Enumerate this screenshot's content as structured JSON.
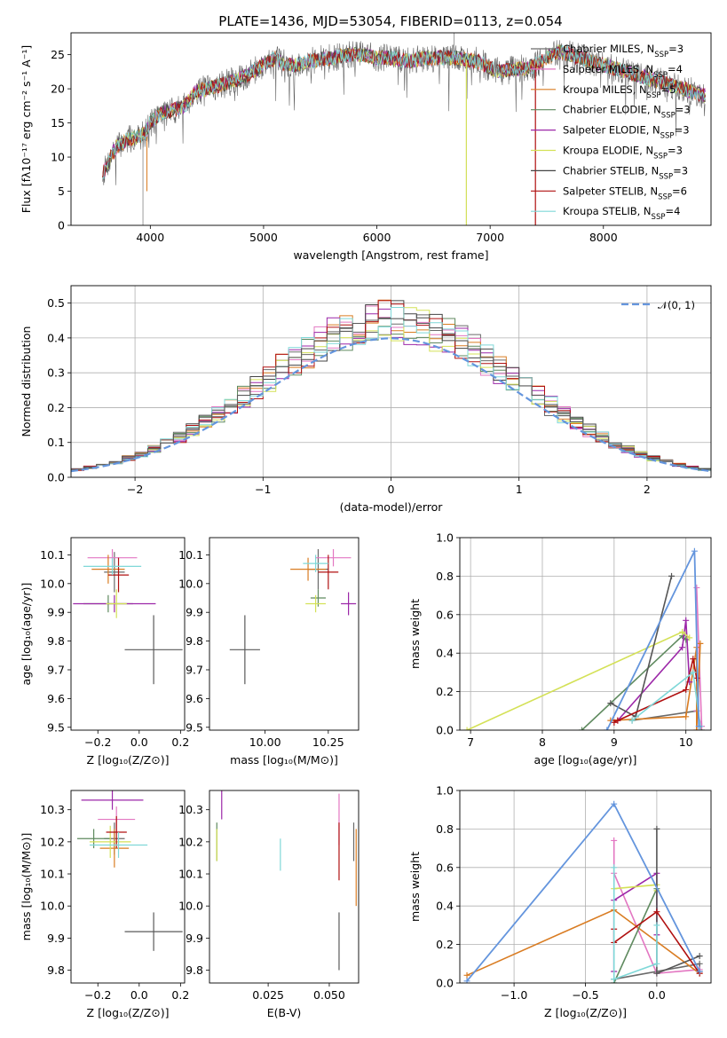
{
  "figure_title": "PLATE=1436, MJD=53054, FIBERID=0113, z=0.054",
  "model_colors": [
    "#6a6a6a",
    "#e377c2",
    "#d97c22",
    "#5f8a5f",
    "#9c27a8",
    "#d4e157",
    "#444444",
    "#b01010",
    "#7fd8d8"
  ],
  "median_color": "#5a5a5a",
  "normal_color": "#6495dd",
  "chart_data": [
    {
      "id": "spectrum",
      "type": "line",
      "title": "PLATE=1436, MJD=53054, FIBERID=0113, z=0.054",
      "xlabel": "wavelength [Angstrom, rest frame]",
      "ylabel": "Flux [fλ10⁻¹⁷ erg cm⁻² s⁻¹ A⁻¹]",
      "xlim": [
        3300,
        8950
      ],
      "ylim": [
        0,
        28.2
      ],
      "xticks": [
        "4000",
        "5000",
        "6000",
        "7000",
        "8000"
      ],
      "yticks": [
        "0",
        "5",
        "10",
        "15",
        "20",
        "25"
      ],
      "legend_position": "upper-right",
      "legend": [
        {
          "text": "Chabrier MILES, N",
          "sub": "SSP",
          "tail": "=3"
        },
        {
          "text": "Salpeter MILES, N",
          "sub": "SSP",
          "tail": "=4"
        },
        {
          "text": "Kroupa MILES, N",
          "sub": "SSP",
          "tail": "=5"
        },
        {
          "text": "Chabrier ELODIE, N",
          "sub": "SSP",
          "tail": "=3"
        },
        {
          "text": "Salpeter ELODIE, N",
          "sub": "SSP",
          "tail": "=3"
        },
        {
          "text": "Kroupa ELODIE, N",
          "sub": "SSP",
          "tail": "=3"
        },
        {
          "text": "Chabrier STELIB, N",
          "sub": "SSP",
          "tail": "=3"
        },
        {
          "text": "Salpeter STELIB, N",
          "sub": "SSP",
          "tail": "=6"
        },
        {
          "text": "Kroupa STELIB, N",
          "sub": "SSP",
          "tail": "=4"
        }
      ],
      "continuum": {
        "x": [
          3580,
          3650,
          3700,
          3800,
          3900,
          3950,
          4000,
          4100,
          4200,
          4300,
          4400,
          4500,
          4600,
          4700,
          4800,
          4900,
          5000,
          5100,
          5200,
          5300,
          5400,
          5500,
          5600,
          5700,
          5800,
          5900,
          6000,
          6100,
          6200,
          6300,
          6400,
          6500,
          6600,
          6700,
          6800,
          6900,
          7000,
          7100,
          7200,
          7300,
          7400,
          7500,
          7600,
          7700,
          7800,
          7900,
          8000,
          8100,
          8200,
          8300,
          8400,
          8500,
          8600,
          8700,
          8800,
          8900
        ],
        "y": [
          7.5,
          10.0,
          11.5,
          12.5,
          13.0,
          13.5,
          15.0,
          16.5,
          16.8,
          17.5,
          19.5,
          20.0,
          20.5,
          21.0,
          21.5,
          22.5,
          23.5,
          24.5,
          23.5,
          23.5,
          24.0,
          24.3,
          24.5,
          24.8,
          25.0,
          25.0,
          24.5,
          24.6,
          24.3,
          24.0,
          24.5,
          24.5,
          24.6,
          24.5,
          24.3,
          24.0,
          23.0,
          22.5,
          22.8,
          23.0,
          23.5,
          24.5,
          25.5,
          25.0,
          24.5,
          24.0,
          23.5,
          23.0,
          22.5,
          22.0,
          21.5,
          21.0,
          20.5,
          20.0,
          19.5,
          19.0
        ]
      },
      "spikes": [
        {
          "x": 3935,
          "y": 0.0
        },
        {
          "x": 6790,
          "y": 0.0
        },
        {
          "x": 7400,
          "y": 0.0
        },
        {
          "x": 6680,
          "y": 28.2
        }
      ],
      "notch": {
        "x": 3970,
        "y": 5.0
      }
    },
    {
      "id": "residual-histogram",
      "type": "step",
      "xlabel": "(data-model)/error",
      "ylabel": "Normed distribution",
      "xlim": [
        -2.5,
        2.5
      ],
      "ylim": [
        0,
        0.55
      ],
      "xticks": [
        "−2",
        "−1",
        "0",
        "1",
        "2"
      ],
      "yticks": [
        "0.0",
        "0.1",
        "0.2",
        "0.3",
        "0.4",
        "0.5"
      ],
      "bin_width": 0.1,
      "legend_position": "upper-right",
      "legend": [
        {
          "text": "𝒩(0, 1)"
        }
      ],
      "median": [
        0.02,
        0.025,
        0.03,
        0.04,
        0.045,
        0.05,
        0.06,
        0.07,
        0.085,
        0.095,
        0.11,
        0.12,
        0.135,
        0.15,
        0.17,
        0.19,
        0.21,
        0.24,
        0.26,
        0.28,
        0.3,
        0.32,
        0.34,
        0.35,
        0.37,
        0.4,
        0.42,
        0.45,
        0.47,
        0.46,
        0.44,
        0.43,
        0.42,
        0.41,
        0.43,
        0.45,
        0.44,
        0.43,
        0.41,
        0.39,
        0.37,
        0.34,
        0.32,
        0.3,
        0.28,
        0.26,
        0.23,
        0.21,
        0.19,
        0.17,
        0.15,
        0.13,
        0.12,
        0.1,
        0.09,
        0.075,
        0.065,
        0.055,
        0.045,
        0.035,
        0.03,
        0.025,
        0.02,
        0.02,
        0.015,
        0.015,
        0.01,
        0.01,
        0.01,
        0.005
      ],
      "normal_pdf": [
        0.018,
        0.024,
        0.032,
        0.042,
        0.054,
        0.068,
        0.085,
        0.104,
        0.125,
        0.148,
        0.175,
        0.203,
        0.233,
        0.264,
        0.295,
        0.325,
        0.352,
        0.375,
        0.391,
        0.399,
        0.397,
        0.385,
        0.364,
        0.336,
        0.302,
        0.266,
        0.229,
        0.193,
        0.159,
        0.128,
        0.101,
        0.078,
        0.059,
        0.044,
        0.032,
        0.022
      ]
    },
    {
      "id": "age-vs-metallicity",
      "type": "errorbar",
      "xlabel": "Z [log₁₀(Z/Z⊙)]",
      "ylabel": "age  [log₁₀(age/yr)]",
      "xlim": [
        -0.33,
        0.22
      ],
      "ylim": [
        9.49,
        10.16
      ],
      "xticks": [
        "−0.2",
        "0.0",
        "0.2"
      ],
      "yticks": [
        "9.5",
        "9.6",
        "9.7",
        "9.8",
        "9.9",
        "10.0",
        "10.1"
      ],
      "points": [
        {
          "x": -0.12,
          "y": 10.04,
          "xerr": 0.05,
          "yerr": 0.07
        },
        {
          "x": -0.13,
          "y": 10.09,
          "xerr": 0.12,
          "yerr": 0.03
        },
        {
          "x": -0.15,
          "y": 10.05,
          "xerr": 0.08,
          "yerr": 0.05
        },
        {
          "x": -0.15,
          "y": 9.93,
          "xerr": 0.12,
          "yerr": 0.03
        },
        {
          "x": -0.12,
          "y": 9.93,
          "xerr": 0.2,
          "yerr": 0.03
        },
        {
          "x": -0.11,
          "y": 9.93,
          "xerr": 0.05,
          "yerr": 0.05
        },
        {
          "x": 0.07,
          "y": 9.77,
          "xerr": 0.14,
          "yerr": 0.12
        },
        {
          "x": -0.1,
          "y": 10.03,
          "xerr": 0.05,
          "yerr": 0.06
        },
        {
          "x": -0.13,
          "y": 10.06,
          "xerr": 0.14,
          "yerr": 0.03
        }
      ]
    },
    {
      "id": "age-vs-mass",
      "type": "errorbar",
      "xlabel": "mass [log₁₀(M/M⊙)]",
      "ylabel": "",
      "xlim": [
        9.78,
        10.37
      ],
      "ylim": [
        9.49,
        10.16
      ],
      "xticks": [
        "10.00",
        "10.25"
      ],
      "yticks": [
        "9.5",
        "9.6",
        "9.7",
        "9.8",
        "9.9",
        "10.0",
        "10.1"
      ],
      "points": [
        {
          "x": 10.21,
          "y": 10.05,
          "xerr": 0.04,
          "yerr": 0.07
        },
        {
          "x": 10.27,
          "y": 10.09,
          "xerr": 0.07,
          "yerr": 0.03
        },
        {
          "x": 10.17,
          "y": 10.05,
          "xerr": 0.07,
          "yerr": 0.04
        },
        {
          "x": 10.21,
          "y": 9.95,
          "xerr": 0.03,
          "yerr": 0.03
        },
        {
          "x": 10.33,
          "y": 9.93,
          "xerr": 0.03,
          "yerr": 0.04
        },
        {
          "x": 10.2,
          "y": 9.93,
          "xerr": 0.04,
          "yerr": 0.03
        },
        {
          "x": 9.92,
          "y": 9.77,
          "xerr": 0.06,
          "yerr": 0.12
        },
        {
          "x": 10.25,
          "y": 10.04,
          "xerr": 0.04,
          "yerr": 0.06
        },
        {
          "x": 10.2,
          "y": 10.07,
          "xerr": 0.05,
          "yerr": 0.03
        }
      ]
    },
    {
      "id": "mass-weight-vs-age",
      "type": "line",
      "xlabel": "age  [log₁₀(age/yr)]",
      "ylabel": "mass weight",
      "xlim": [
        6.85,
        10.35
      ],
      "ylim": [
        0.0,
        1.0
      ],
      "xticks": [
        "7",
        "8",
        "9",
        "10"
      ],
      "yticks": [
        "0.0",
        "0.2",
        "0.4",
        "0.6",
        "0.8",
        "1.0"
      ],
      "grid": true,
      "series": [
        {
          "x": [
            9.25,
            10.15,
            10.22
          ],
          "y": [
            0.05,
            0.1,
            0.0
          ]
        },
        {
          "x": [
            10.15,
            10.22,
            10.15
          ],
          "y": [
            0.74,
            0.02,
            0.1
          ]
        },
        {
          "x": [
            8.95,
            10.0,
            10.15,
            10.15,
            10.2
          ],
          "y": [
            0.05,
            0.07,
            0.43,
            0.0,
            0.45
          ]
        },
        {
          "x": [
            8.55,
            9.95,
            10.0
          ],
          "y": [
            0.0,
            0.49,
            0.47
          ]
        },
        {
          "x": [
            9.05,
            9.95,
            10.0,
            10.05
          ],
          "y": [
            0.05,
            0.43,
            0.57,
            0.25
          ]
        },
        {
          "x": [
            6.95,
            9.95,
            10.05
          ],
          "y": [
            0.0,
            0.51,
            0.48
          ]
        },
        {
          "x": [
            8.95,
            9.3,
            9.8
          ],
          "y": [
            0.14,
            0.07,
            0.8
          ]
        },
        {
          "x": [
            9.0,
            9.05,
            10.0,
            10.1,
            10.15
          ],
          "y": [
            0.04,
            0.05,
            0.21,
            0.37,
            0.27
          ]
        },
        {
          "x": [
            9.25,
            10.1,
            10.2
          ],
          "y": [
            0.05,
            0.3,
            0.02
          ]
        }
      ],
      "overlay": {
        "x": [
          8.9,
          10.12,
          10.18
        ],
        "y": [
          0.0,
          0.93,
          0.02
        ]
      }
    },
    {
      "id": "mass-vs-metallicity",
      "type": "errorbar",
      "xlabel": "Z [log₁₀(Z/Z⊙)]",
      "ylabel": "mass [log₁₀(M/M⊙)]",
      "xlim": [
        -0.33,
        0.22
      ],
      "ylim": [
        9.76,
        10.36
      ],
      "xticks": [
        "−0.2",
        "0.0",
        "0.2"
      ],
      "yticks": [
        "9.8",
        "9.9",
        "10.0",
        "10.1",
        "10.2",
        "10.3"
      ],
      "points": [
        {
          "x": -0.12,
          "y": 10.21,
          "xerr": 0.05,
          "yerr": 0.05
        },
        {
          "x": -0.11,
          "y": 10.27,
          "xerr": 0.09,
          "yerr": 0.04
        },
        {
          "x": -0.12,
          "y": 10.18,
          "xerr": 0.07,
          "yerr": 0.06
        },
        {
          "x": -0.22,
          "y": 10.21,
          "xerr": 0.08,
          "yerr": 0.03
        },
        {
          "x": -0.13,
          "y": 10.33,
          "xerr": 0.15,
          "yerr": 0.03
        },
        {
          "x": -0.14,
          "y": 10.2,
          "xerr": 0.1,
          "yerr": 0.05
        },
        {
          "x": 0.07,
          "y": 9.92,
          "xerr": 0.14,
          "yerr": 0.06
        },
        {
          "x": -0.11,
          "y": 10.23,
          "xerr": 0.05,
          "yerr": 0.05
        },
        {
          "x": -0.1,
          "y": 10.19,
          "xerr": 0.14,
          "yerr": 0.04
        }
      ]
    },
    {
      "id": "mass-vs-extinction",
      "type": "errorbar",
      "xlabel": "E(B-V)",
      "ylabel": "",
      "xlim": [
        0.001,
        0.062
      ],
      "ylim": [
        9.76,
        10.36
      ],
      "xticks": [
        "0.025",
        "0.050"
      ],
      "yticks": [
        "9.8",
        "9.9",
        "10.0",
        "10.1",
        "10.2",
        "10.3"
      ],
      "points": [
        {
          "x": 0.06,
          "y": 10.2,
          "xerr": 0.0,
          "yerr": 0.06
        },
        {
          "x": 0.054,
          "y": 10.27,
          "xerr": 0.0,
          "yerr": 0.08
        },
        {
          "x": 0.061,
          "y": 10.12,
          "xerr": 0.0,
          "yerr": 0.12
        },
        {
          "x": 0.004,
          "y": 10.2,
          "xerr": 0.0,
          "yerr": 0.06
        },
        {
          "x": 0.006,
          "y": 10.32,
          "xerr": 0.0,
          "yerr": 0.05
        },
        {
          "x": 0.004,
          "y": 10.19,
          "xerr": 0.0,
          "yerr": 0.05
        },
        {
          "x": 0.054,
          "y": 9.89,
          "xerr": 0.0,
          "yerr": 0.09
        },
        {
          "x": 0.054,
          "y": 10.17,
          "xerr": 0.0,
          "yerr": 0.09
        },
        {
          "x": 0.03,
          "y": 10.16,
          "xerr": 0.0,
          "yerr": 0.05
        }
      ]
    },
    {
      "id": "mass-weight-vs-metallicity",
      "type": "line",
      "xlabel": "Z [log₁₀(Z/Z⊙)]",
      "ylabel": "mass weight",
      "xlim": [
        -1.38,
        0.38
      ],
      "ylim": [
        0.0,
        1.0
      ],
      "xticks": [
        "−1.0",
        "−0.5",
        "0.0"
      ],
      "yticks": [
        "0.0",
        "0.2",
        "0.4",
        "0.6",
        "0.8",
        "1.0"
      ],
      "grid": true,
      "series": [
        {
          "x": [
            -0.3,
            0.3,
            0.3
          ],
          "y": [
            0.02,
            0.1,
            0.06
          ]
        },
        {
          "x": [
            -0.3,
            -0.3,
            0.0,
            0.3
          ],
          "y": [
            0.74,
            0.57,
            0.05,
            0.07
          ]
        },
        {
          "x": [
            -1.33,
            -0.3,
            0.3
          ],
          "y": [
            0.04,
            0.38,
            0.05
          ]
        },
        {
          "x": [
            -0.3,
            0.0
          ],
          "y": [
            0.0,
            0.49
          ]
        },
        {
          "x": [
            -0.3,
            -0.3,
            0.0,
            0.0
          ],
          "y": [
            0.06,
            0.43,
            0.57,
            0.25
          ]
        },
        {
          "x": [
            -0.3,
            0.0,
            0.0
          ],
          "y": [
            0.49,
            0.51,
            0.48
          ]
        },
        {
          "x": [
            0.0,
            0.0,
            0.3
          ],
          "y": [
            0.8,
            0.05,
            0.14
          ]
        },
        {
          "x": [
            -0.3,
            -0.3,
            0.0,
            0.3
          ],
          "y": [
            0.28,
            0.21,
            0.37,
            0.05
          ]
        },
        {
          "x": [
            -0.3,
            -0.3,
            0.0,
            0.0
          ],
          "y": [
            0.6,
            0.02,
            0.1,
            0.3
          ]
        }
      ],
      "overlay": {
        "x": [
          -1.33,
          -0.3,
          0.3
        ],
        "y": [
          0.01,
          0.93,
          0.06
        ]
      }
    }
  ]
}
